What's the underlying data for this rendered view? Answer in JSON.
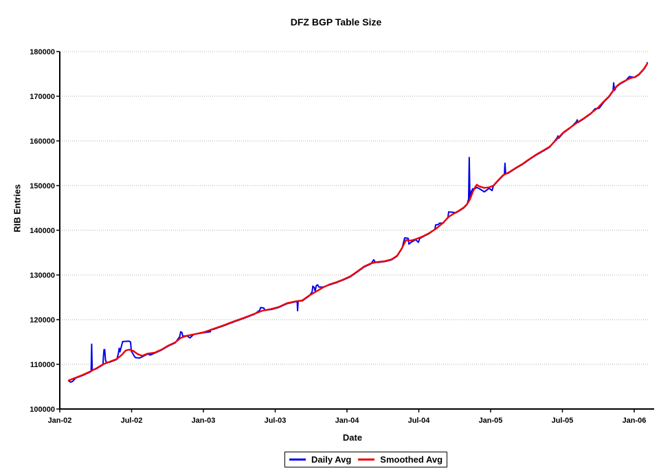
{
  "title": "DFZ BGP Table Size",
  "chart_data": {
    "type": "line",
    "title": "DFZ BGP Table Size",
    "xlabel": "Date",
    "ylabel": "RIB Entries",
    "ylim": [
      100000,
      180000
    ],
    "ytick_step": 10000,
    "ytick_labels": [
      "100000",
      "110000",
      "120000",
      "130000",
      "140000",
      "150000",
      "160000",
      "170000",
      "180000"
    ],
    "xtick_labels": [
      "Jan-02",
      "Jul-02",
      "Jan-03",
      "Jul-03",
      "Jan-04",
      "Jul-04",
      "Jan-05",
      "Jul-05",
      "Jan-06"
    ],
    "xtick_t": [
      0,
      0.5,
      1,
      1.5,
      2,
      2.5,
      3,
      3.5,
      4
    ],
    "x_unit": "years since Jan-2002",
    "grid": {
      "show": true,
      "color": "#a8a8a8",
      "style": "dotted"
    },
    "legend_position": "bottom-center",
    "axis_color": "#000000",
    "legend": [
      {
        "label": "Daily Avg",
        "color": "#0000ee"
      },
      {
        "label": "Smoothed Avg",
        "color": "#ee0000"
      }
    ],
    "series": [
      {
        "name": "Daily Avg",
        "color": "#0000ee",
        "width": 2,
        "points": [
          [
            0.062,
            106300
          ],
          [
            0.075,
            106000
          ],
          [
            0.09,
            106200
          ],
          [
            0.11,
            106900
          ],
          [
            0.158,
            107500
          ],
          [
            0.206,
            108200
          ],
          [
            0.218,
            108400
          ],
          [
            0.222,
            114500
          ],
          [
            0.226,
            108700
          ],
          [
            0.254,
            109000
          ],
          [
            0.301,
            109900
          ],
          [
            0.304,
            111800
          ],
          [
            0.308,
            113300
          ],
          [
            0.313,
            113300
          ],
          [
            0.318,
            111000
          ],
          [
            0.325,
            110400
          ],
          [
            0.349,
            110500
          ],
          [
            0.397,
            111100
          ],
          [
            0.407,
            112300
          ],
          [
            0.414,
            113600
          ],
          [
            0.419,
            112800
          ],
          [
            0.438,
            115100
          ],
          [
            0.483,
            115200
          ],
          [
            0.493,
            115000
          ],
          [
            0.498,
            113000
          ],
          [
            0.507,
            112500
          ],
          [
            0.517,
            111900
          ],
          [
            0.527,
            111500
          ],
          [
            0.555,
            111400
          ],
          [
            0.574,
            111700
          ],
          [
            0.612,
            112300
          ],
          [
            0.63,
            112100
          ],
          [
            0.66,
            112500
          ],
          [
            0.708,
            113200
          ],
          [
            0.756,
            114100
          ],
          [
            0.804,
            114800
          ],
          [
            0.835,
            116200
          ],
          [
            0.842,
            117300
          ],
          [
            0.851,
            117100
          ],
          [
            0.856,
            116300
          ],
          [
            0.885,
            116400
          ],
          [
            0.906,
            115900
          ],
          [
            0.933,
            116700
          ],
          [
            1.005,
            117100
          ],
          [
            1.048,
            117300
          ],
          [
            1.053,
            117800
          ],
          [
            1.067,
            117800
          ],
          [
            1.139,
            118600
          ],
          [
            1.211,
            119500
          ],
          [
            1.282,
            120300
          ],
          [
            1.354,
            121200
          ],
          [
            1.392,
            122100
          ],
          [
            1.399,
            122700
          ],
          [
            1.42,
            122600
          ],
          [
            1.43,
            122100
          ],
          [
            1.474,
            122300
          ],
          [
            1.522,
            122700
          ],
          [
            1.584,
            123600
          ],
          [
            1.641,
            124000
          ],
          [
            1.653,
            124100
          ],
          [
            1.656,
            122000
          ],
          [
            1.66,
            124200
          ],
          [
            1.689,
            124200
          ],
          [
            1.737,
            125300
          ],
          [
            1.757,
            126200
          ],
          [
            1.762,
            127500
          ],
          [
            1.772,
            127200
          ],
          [
            1.778,
            126400
          ],
          [
            1.786,
            127600
          ],
          [
            1.795,
            127800
          ],
          [
            1.805,
            127300
          ],
          [
            1.833,
            127300
          ],
          [
            1.88,
            127800
          ],
          [
            1.928,
            128300
          ],
          [
            1.976,
            128900
          ],
          [
            2.024,
            129600
          ],
          [
            2.072,
            130700
          ],
          [
            2.12,
            131800
          ],
          [
            2.167,
            132500
          ],
          [
            2.186,
            133400
          ],
          [
            2.196,
            132900
          ],
          [
            2.215,
            132800
          ],
          [
            2.263,
            133000
          ],
          [
            2.311,
            133400
          ],
          [
            2.349,
            134200
          ],
          [
            2.383,
            135900
          ],
          [
            2.402,
            138300
          ],
          [
            2.426,
            138200
          ],
          [
            2.431,
            136900
          ],
          [
            2.445,
            137300
          ],
          [
            2.478,
            137900
          ],
          [
            2.497,
            137300
          ],
          [
            2.507,
            138200
          ],
          [
            2.526,
            138500
          ],
          [
            2.574,
            139300
          ],
          [
            2.612,
            140200
          ],
          [
            2.617,
            141200
          ],
          [
            2.636,
            141300
          ],
          [
            2.645,
            141600
          ],
          [
            2.67,
            141600
          ],
          [
            2.703,
            142900
          ],
          [
            2.708,
            144100
          ],
          [
            2.746,
            144000
          ],
          [
            2.751,
            143800
          ],
          [
            2.78,
            144300
          ],
          [
            2.813,
            145000
          ],
          [
            2.837,
            145800
          ],
          [
            2.842,
            146500
          ],
          [
            2.847,
            147000
          ],
          [
            2.851,
            156300
          ],
          [
            2.856,
            147300
          ],
          [
            2.866,
            148700
          ],
          [
            2.876,
            149300
          ],
          [
            2.89,
            149300
          ],
          [
            2.904,
            149600
          ],
          [
            2.923,
            149300
          ],
          [
            2.957,
            148600
          ],
          [
            2.99,
            149400
          ],
          [
            3.01,
            148900
          ],
          [
            3.019,
            149900
          ],
          [
            3.053,
            151100
          ],
          [
            3.086,
            152200
          ],
          [
            3.096,
            152500
          ],
          [
            3.1,
            155000
          ],
          [
            3.105,
            152600
          ],
          [
            3.124,
            152800
          ],
          [
            3.172,
            153800
          ],
          [
            3.22,
            154700
          ],
          [
            3.268,
            155800
          ],
          [
            3.316,
            156800
          ],
          [
            3.364,
            157700
          ],
          [
            3.411,
            158600
          ],
          [
            3.464,
            160700
          ],
          [
            3.469,
            161100
          ],
          [
            3.474,
            160600
          ],
          [
            3.507,
            161800
          ],
          [
            3.555,
            162900
          ],
          [
            3.598,
            164300
          ],
          [
            3.603,
            164700
          ],
          [
            3.608,
            164100
          ],
          [
            3.651,
            165000
          ],
          [
            3.699,
            166100
          ],
          [
            3.727,
            167200
          ],
          [
            3.756,
            167300
          ],
          [
            3.794,
            168900
          ],
          [
            3.823,
            169800
          ],
          [
            3.852,
            171100
          ],
          [
            3.857,
            173000
          ],
          [
            3.862,
            171300
          ],
          [
            3.876,
            172100
          ],
          [
            3.904,
            172800
          ],
          [
            3.938,
            173400
          ],
          [
            3.966,
            174400
          ],
          [
            4.005,
            174200
          ],
          [
            4.033,
            174800
          ],
          [
            4.067,
            176000
          ],
          [
            4.085,
            176900
          ],
          [
            4.091,
            177500
          ]
        ]
      },
      {
        "name": "Smoothed Avg",
        "color": "#ee0000",
        "width": 2.4,
        "points": [
          [
            0.062,
            106400
          ],
          [
            0.11,
            107000
          ],
          [
            0.158,
            107600
          ],
          [
            0.206,
            108300
          ],
          [
            0.254,
            109100
          ],
          [
            0.301,
            110000
          ],
          [
            0.349,
            110600
          ],
          [
            0.397,
            111200
          ],
          [
            0.431,
            112100
          ],
          [
            0.459,
            113100
          ],
          [
            0.483,
            113300
          ],
          [
            0.512,
            113000
          ],
          [
            0.541,
            112300
          ],
          [
            0.574,
            111900
          ],
          [
            0.612,
            112400
          ],
          [
            0.66,
            112600
          ],
          [
            0.708,
            113300
          ],
          [
            0.756,
            114200
          ],
          [
            0.804,
            114900
          ],
          [
            0.842,
            115900
          ],
          [
            0.885,
            116400
          ],
          [
            0.933,
            116700
          ],
          [
            1.005,
            117200
          ],
          [
            1.067,
            117900
          ],
          [
            1.139,
            118700
          ],
          [
            1.211,
            119600
          ],
          [
            1.282,
            120400
          ],
          [
            1.354,
            121300
          ],
          [
            1.411,
            122000
          ],
          [
            1.474,
            122400
          ],
          [
            1.522,
            122800
          ],
          [
            1.584,
            123700
          ],
          [
            1.641,
            124100
          ],
          [
            1.689,
            124300
          ],
          [
            1.737,
            125400
          ],
          [
            1.785,
            126300
          ],
          [
            1.833,
            127200
          ],
          [
            1.88,
            127900
          ],
          [
            1.928,
            128400
          ],
          [
            1.976,
            129000
          ],
          [
            2.024,
            129700
          ],
          [
            2.072,
            130800
          ],
          [
            2.12,
            131900
          ],
          [
            2.167,
            132600
          ],
          [
            2.215,
            132900
          ],
          [
            2.263,
            133100
          ],
          [
            2.311,
            133500
          ],
          [
            2.349,
            134300
          ],
          [
            2.383,
            136000
          ],
          [
            2.411,
            137800
          ],
          [
            2.445,
            137700
          ],
          [
            2.478,
            138000
          ],
          [
            2.526,
            138600
          ],
          [
            2.574,
            139400
          ],
          [
            2.622,
            140400
          ],
          [
            2.67,
            141700
          ],
          [
            2.708,
            143000
          ],
          [
            2.742,
            143700
          ],
          [
            2.78,
            144400
          ],
          [
            2.813,
            145100
          ],
          [
            2.837,
            145900
          ],
          [
            2.856,
            146900
          ],
          [
            2.876,
            148600
          ],
          [
            2.89,
            149500
          ],
          [
            2.904,
            150200
          ],
          [
            2.923,
            149800
          ],
          [
            2.957,
            149500
          ],
          [
            2.99,
            149600
          ],
          [
            3.019,
            150000
          ],
          [
            3.053,
            151200
          ],
          [
            3.086,
            152300
          ],
          [
            3.124,
            152900
          ],
          [
            3.172,
            153900
          ],
          [
            3.22,
            154800
          ],
          [
            3.268,
            155900
          ],
          [
            3.316,
            156900
          ],
          [
            3.364,
            157800
          ],
          [
            3.411,
            158700
          ],
          [
            3.459,
            160300
          ],
          [
            3.507,
            161900
          ],
          [
            3.555,
            163000
          ],
          [
            3.603,
            164100
          ],
          [
            3.651,
            165100
          ],
          [
            3.699,
            166200
          ],
          [
            3.746,
            167400
          ],
          [
            3.794,
            169000
          ],
          [
            3.823,
            169900
          ],
          [
            3.852,
            171200
          ],
          [
            3.876,
            172200
          ],
          [
            3.904,
            172900
          ],
          [
            3.938,
            173500
          ],
          [
            3.971,
            174000
          ],
          [
            4.005,
            174300
          ],
          [
            4.033,
            174900
          ],
          [
            4.067,
            176100
          ],
          [
            4.091,
            177300
          ]
        ]
      }
    ]
  }
}
